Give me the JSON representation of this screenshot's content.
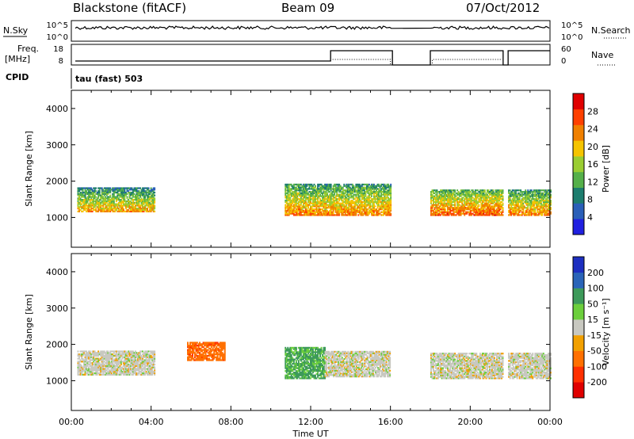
{
  "header": {
    "radar": "Blackstone (fitACF)",
    "beam": "Beam 09",
    "date": "07/Oct/2012"
  },
  "nsky_panel": {
    "left_label": "N.Sky",
    "left_ticks": [
      "10^5",
      "10^0"
    ],
    "right_label": "N.Search",
    "right_ticks": [
      "10^5",
      "10^0"
    ]
  },
  "freq_panel": {
    "left_label_line1": "Freq.",
    "left_label_line2": "[MHz]",
    "left_ticks": [
      "18",
      "8"
    ],
    "right_label": "Nave",
    "right_ticks": [
      "60",
      "0"
    ]
  },
  "cpid_panel": {
    "label": "CPID",
    "program": "tau (fast) 503"
  },
  "chart_data": [
    {
      "type": "heatmap",
      "quantity": "Power",
      "ylabel": "Slant Range [km]",
      "ylim": [
        180,
        4500
      ],
      "yticks": [
        "1000",
        "2000",
        "3000",
        "4000"
      ],
      "xlabel": "Time UT",
      "xlim_hours": [
        0,
        24
      ],
      "colorbar": {
        "label": "Power [dB]",
        "ticks": [
          "4",
          "8",
          "12",
          "16",
          "20",
          "24",
          "28"
        ],
        "range": [
          0,
          32
        ],
        "colors": [
          "#2020e0",
          "#2a5fb8",
          "#1d7d6e",
          "#55b04a",
          "#9acd32",
          "#f5c400",
          "#f08000",
          "#ff4000",
          "#e00000"
        ]
      },
      "bands": [
        {
          "t0": 0.3,
          "t1": 4.2,
          "r_low": 1150,
          "r_high": 1800,
          "value": 22
        },
        {
          "t0": 10.7,
          "t1": 16.0,
          "r_low": 1050,
          "r_high": 1900,
          "value": 24
        },
        {
          "t0": 18.0,
          "t1": 21.6,
          "r_low": 1050,
          "r_high": 1750,
          "value": 26
        },
        {
          "t0": 21.9,
          "t1": 24.0,
          "r_low": 1050,
          "r_high": 1750,
          "value": 24
        }
      ]
    },
    {
      "type": "heatmap",
      "quantity": "Velocity",
      "ylabel": "Slant Range [km]",
      "ylim": [
        180,
        4500
      ],
      "yticks": [
        "1000",
        "2000",
        "3000",
        "4000"
      ],
      "xlabel": "Time UT",
      "xticks": [
        "00:00",
        "04:00",
        "08:00",
        "12:00",
        "16:00",
        "20:00",
        "00:00"
      ],
      "colorbar": {
        "label": "Velocity [m s⁻¹]",
        "ticks": [
          "200",
          "100",
          "50",
          "15",
          "-15",
          "-50",
          "-100",
          "-200"
        ],
        "colors": [
          "#1d2fc0",
          "#2a64b8",
          "#3d9a5a",
          "#6ccf3c",
          "#c8c8c0",
          "#f2a000",
          "#ff7000",
          "#ff3000",
          "#e00000"
        ]
      },
      "bands": [
        {
          "t0": 0.3,
          "t1": 4.2,
          "r_low": 1150,
          "r_high": 1800,
          "value": 0
        },
        {
          "t0": 5.8,
          "t1": 7.7,
          "r_low": 1550,
          "r_high": 2050,
          "value": -60
        },
        {
          "t0": 10.7,
          "t1": 12.7,
          "r_low": 1050,
          "r_high": 1900,
          "value": 40
        },
        {
          "t0": 12.7,
          "t1": 16.0,
          "r_low": 1100,
          "r_high": 1800,
          "value": 0
        },
        {
          "t0": 18.0,
          "t1": 21.6,
          "r_low": 1050,
          "r_high": 1750,
          "value": 0
        },
        {
          "t0": 21.9,
          "t1": 24.0,
          "r_low": 1050,
          "r_high": 1750,
          "value": 0
        }
      ]
    }
  ]
}
